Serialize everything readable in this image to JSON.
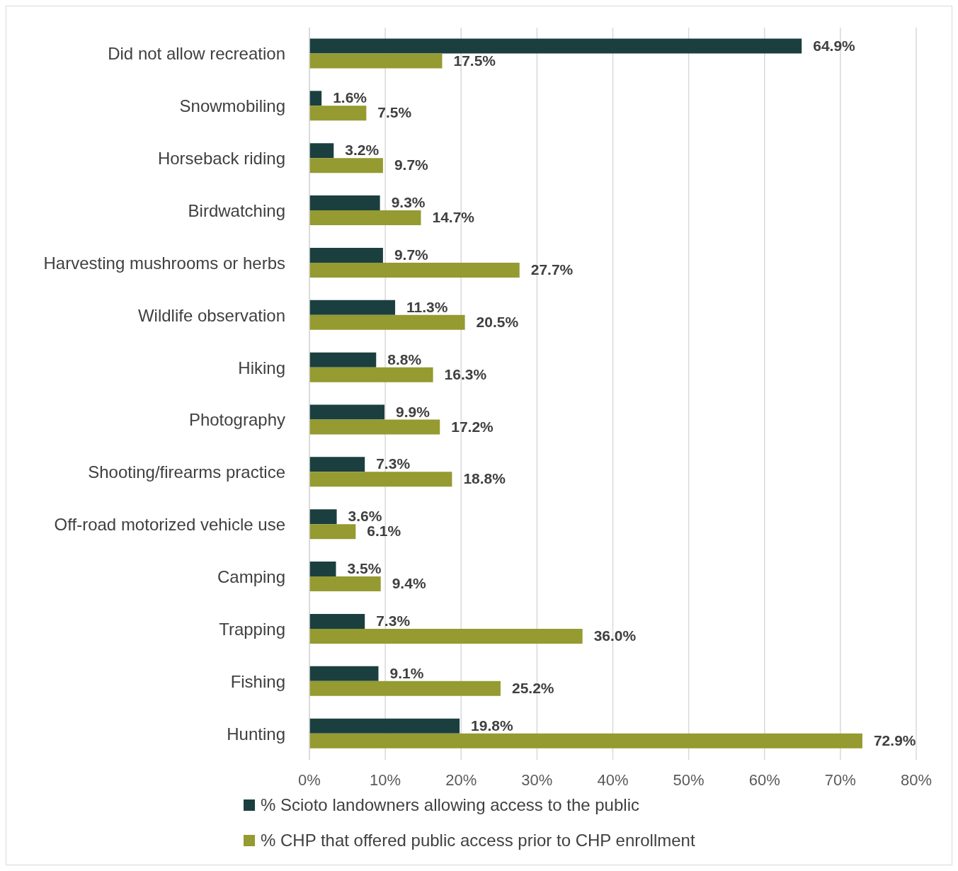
{
  "chart_data": {
    "type": "bar",
    "orientation": "horizontal",
    "categories": [
      "Did not allow recreation",
      "Snowmobiling",
      "Horseback riding",
      "Birdwatching",
      "Harvesting mushrooms or herbs",
      "Wildlife observation",
      "Hiking",
      "Photography",
      "Shooting/firearms practice",
      "Off-road motorized vehicle use",
      "Camping",
      "Trapping",
      "Fishing",
      "Hunting"
    ],
    "series": [
      {
        "name": "% Scioto landowners allowing access to the public",
        "color": "#1b3f3f",
        "values": [
          64.9,
          1.6,
          3.2,
          9.3,
          9.7,
          11.3,
          8.8,
          9.9,
          7.3,
          3.6,
          3.5,
          7.3,
          9.1,
          19.8
        ],
        "value_labels": [
          "64.9%",
          "1.6%",
          "3.2%",
          "9.3%",
          "9.7%",
          "11.3%",
          "8.8%",
          "9.9%",
          "7.3%",
          "3.6%",
          "3.5%",
          "7.3%",
          "9.1%",
          "19.8%"
        ]
      },
      {
        "name": "% CHP that offered public access prior to CHP enrollment",
        "color": "#959a31",
        "values": [
          17.5,
          7.5,
          9.7,
          14.7,
          27.7,
          20.5,
          16.3,
          17.2,
          18.8,
          6.1,
          9.4,
          36.0,
          25.2,
          72.9
        ],
        "value_labels": [
          "17.5%",
          "7.5%",
          "9.7%",
          "14.7%",
          "27.7%",
          "20.5%",
          "16.3%",
          "17.2%",
          "18.8%",
          "6.1%",
          "9.4%",
          "36.0%",
          "25.2%",
          "72.9%"
        ]
      }
    ],
    "xlim": [
      0,
      80
    ],
    "xticks": [
      {
        "value": 0,
        "label": "0%"
      },
      {
        "value": 10,
        "label": "10%"
      },
      {
        "value": 20,
        "label": "20%"
      },
      {
        "value": 30,
        "label": "30%"
      },
      {
        "value": 40,
        "label": "40%"
      },
      {
        "value": 50,
        "label": "50%"
      },
      {
        "value": 60,
        "label": "60%"
      },
      {
        "value": 70,
        "label": "70%"
      },
      {
        "value": 80,
        "label": "80%"
      }
    ],
    "grid": "x",
    "legend": "bottom"
  }
}
